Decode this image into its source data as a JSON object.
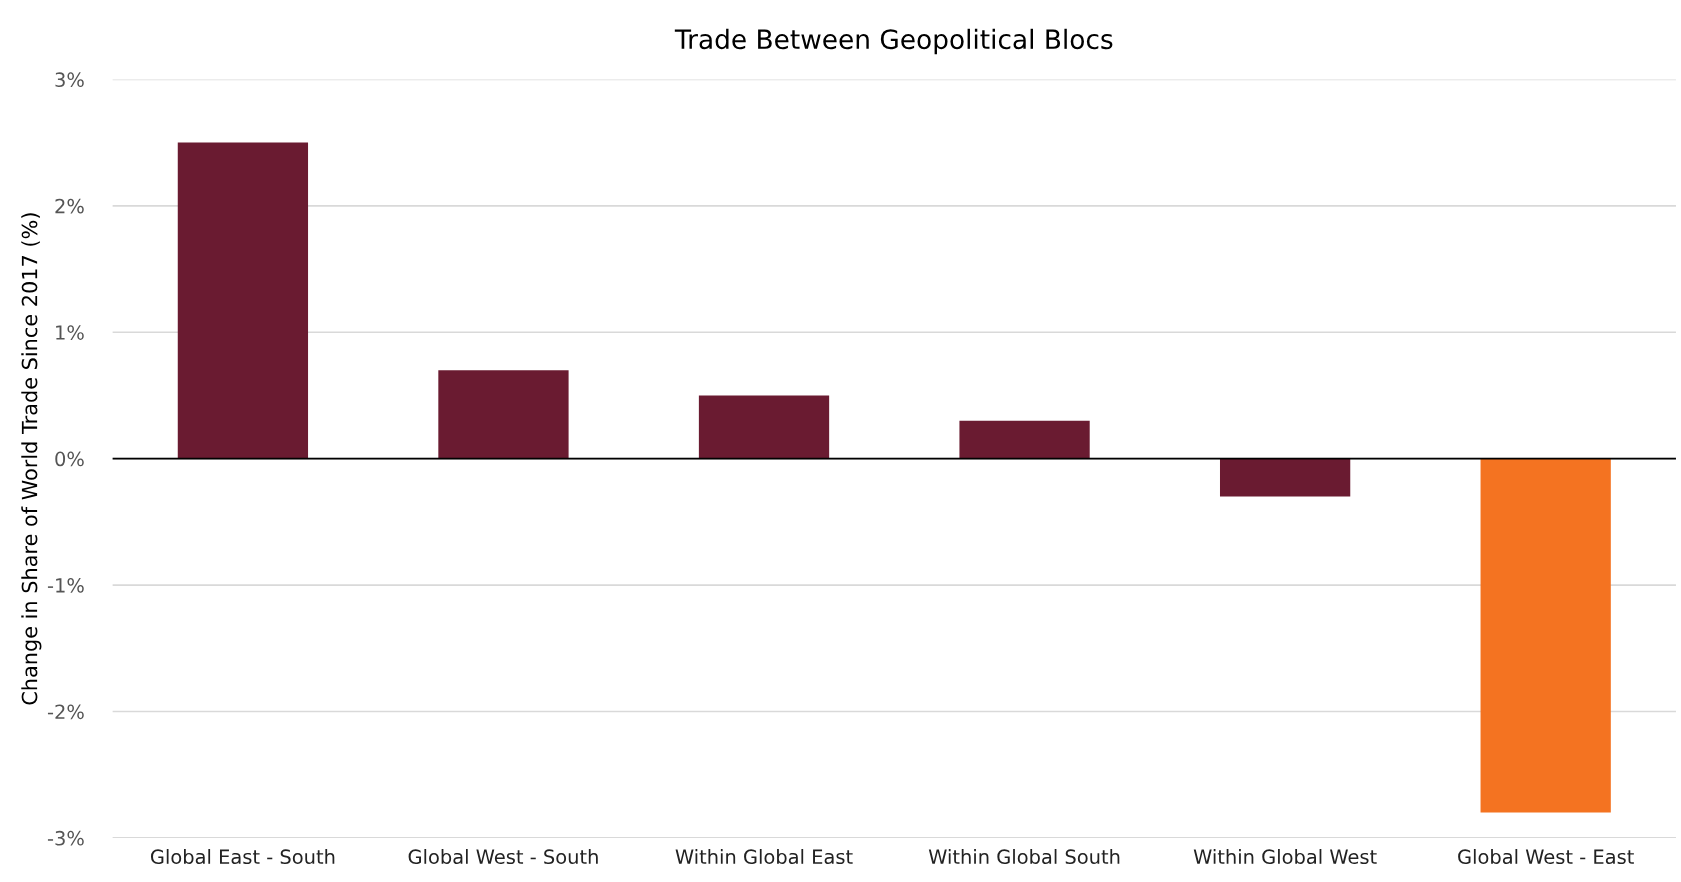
{
  "chart_data": {
    "type": "bar",
    "title": "Trade Between Geopolitical Blocs",
    "ylabel": "Change in Share of World Trade Since 2017 (%)",
    "categories": [
      "Global East - South",
      "Global West - South",
      "Within Global East",
      "Within Global South",
      "Within Global West",
      "Global West - East"
    ],
    "values": [
      2.5,
      0.7,
      0.5,
      0.3,
      -0.3,
      -2.8
    ],
    "colors": [
      "#6a1b31",
      "#6a1b31",
      "#6a1b31",
      "#6a1b31",
      "#6a1b31",
      "#f47321"
    ],
    "ylim": [
      -3,
      3
    ],
    "yticks": [
      {
        "value": -3,
        "label": "-3%"
      },
      {
        "value": -2,
        "label": "-2%"
      },
      {
        "value": -1,
        "label": "-1%"
      },
      {
        "value": 0,
        "label": "0%"
      },
      {
        "value": 1,
        "label": "1%"
      },
      {
        "value": 2,
        "label": "2%"
      },
      {
        "value": 3,
        "label": "3%"
      }
    ],
    "grid": "y",
    "legend": false
  }
}
